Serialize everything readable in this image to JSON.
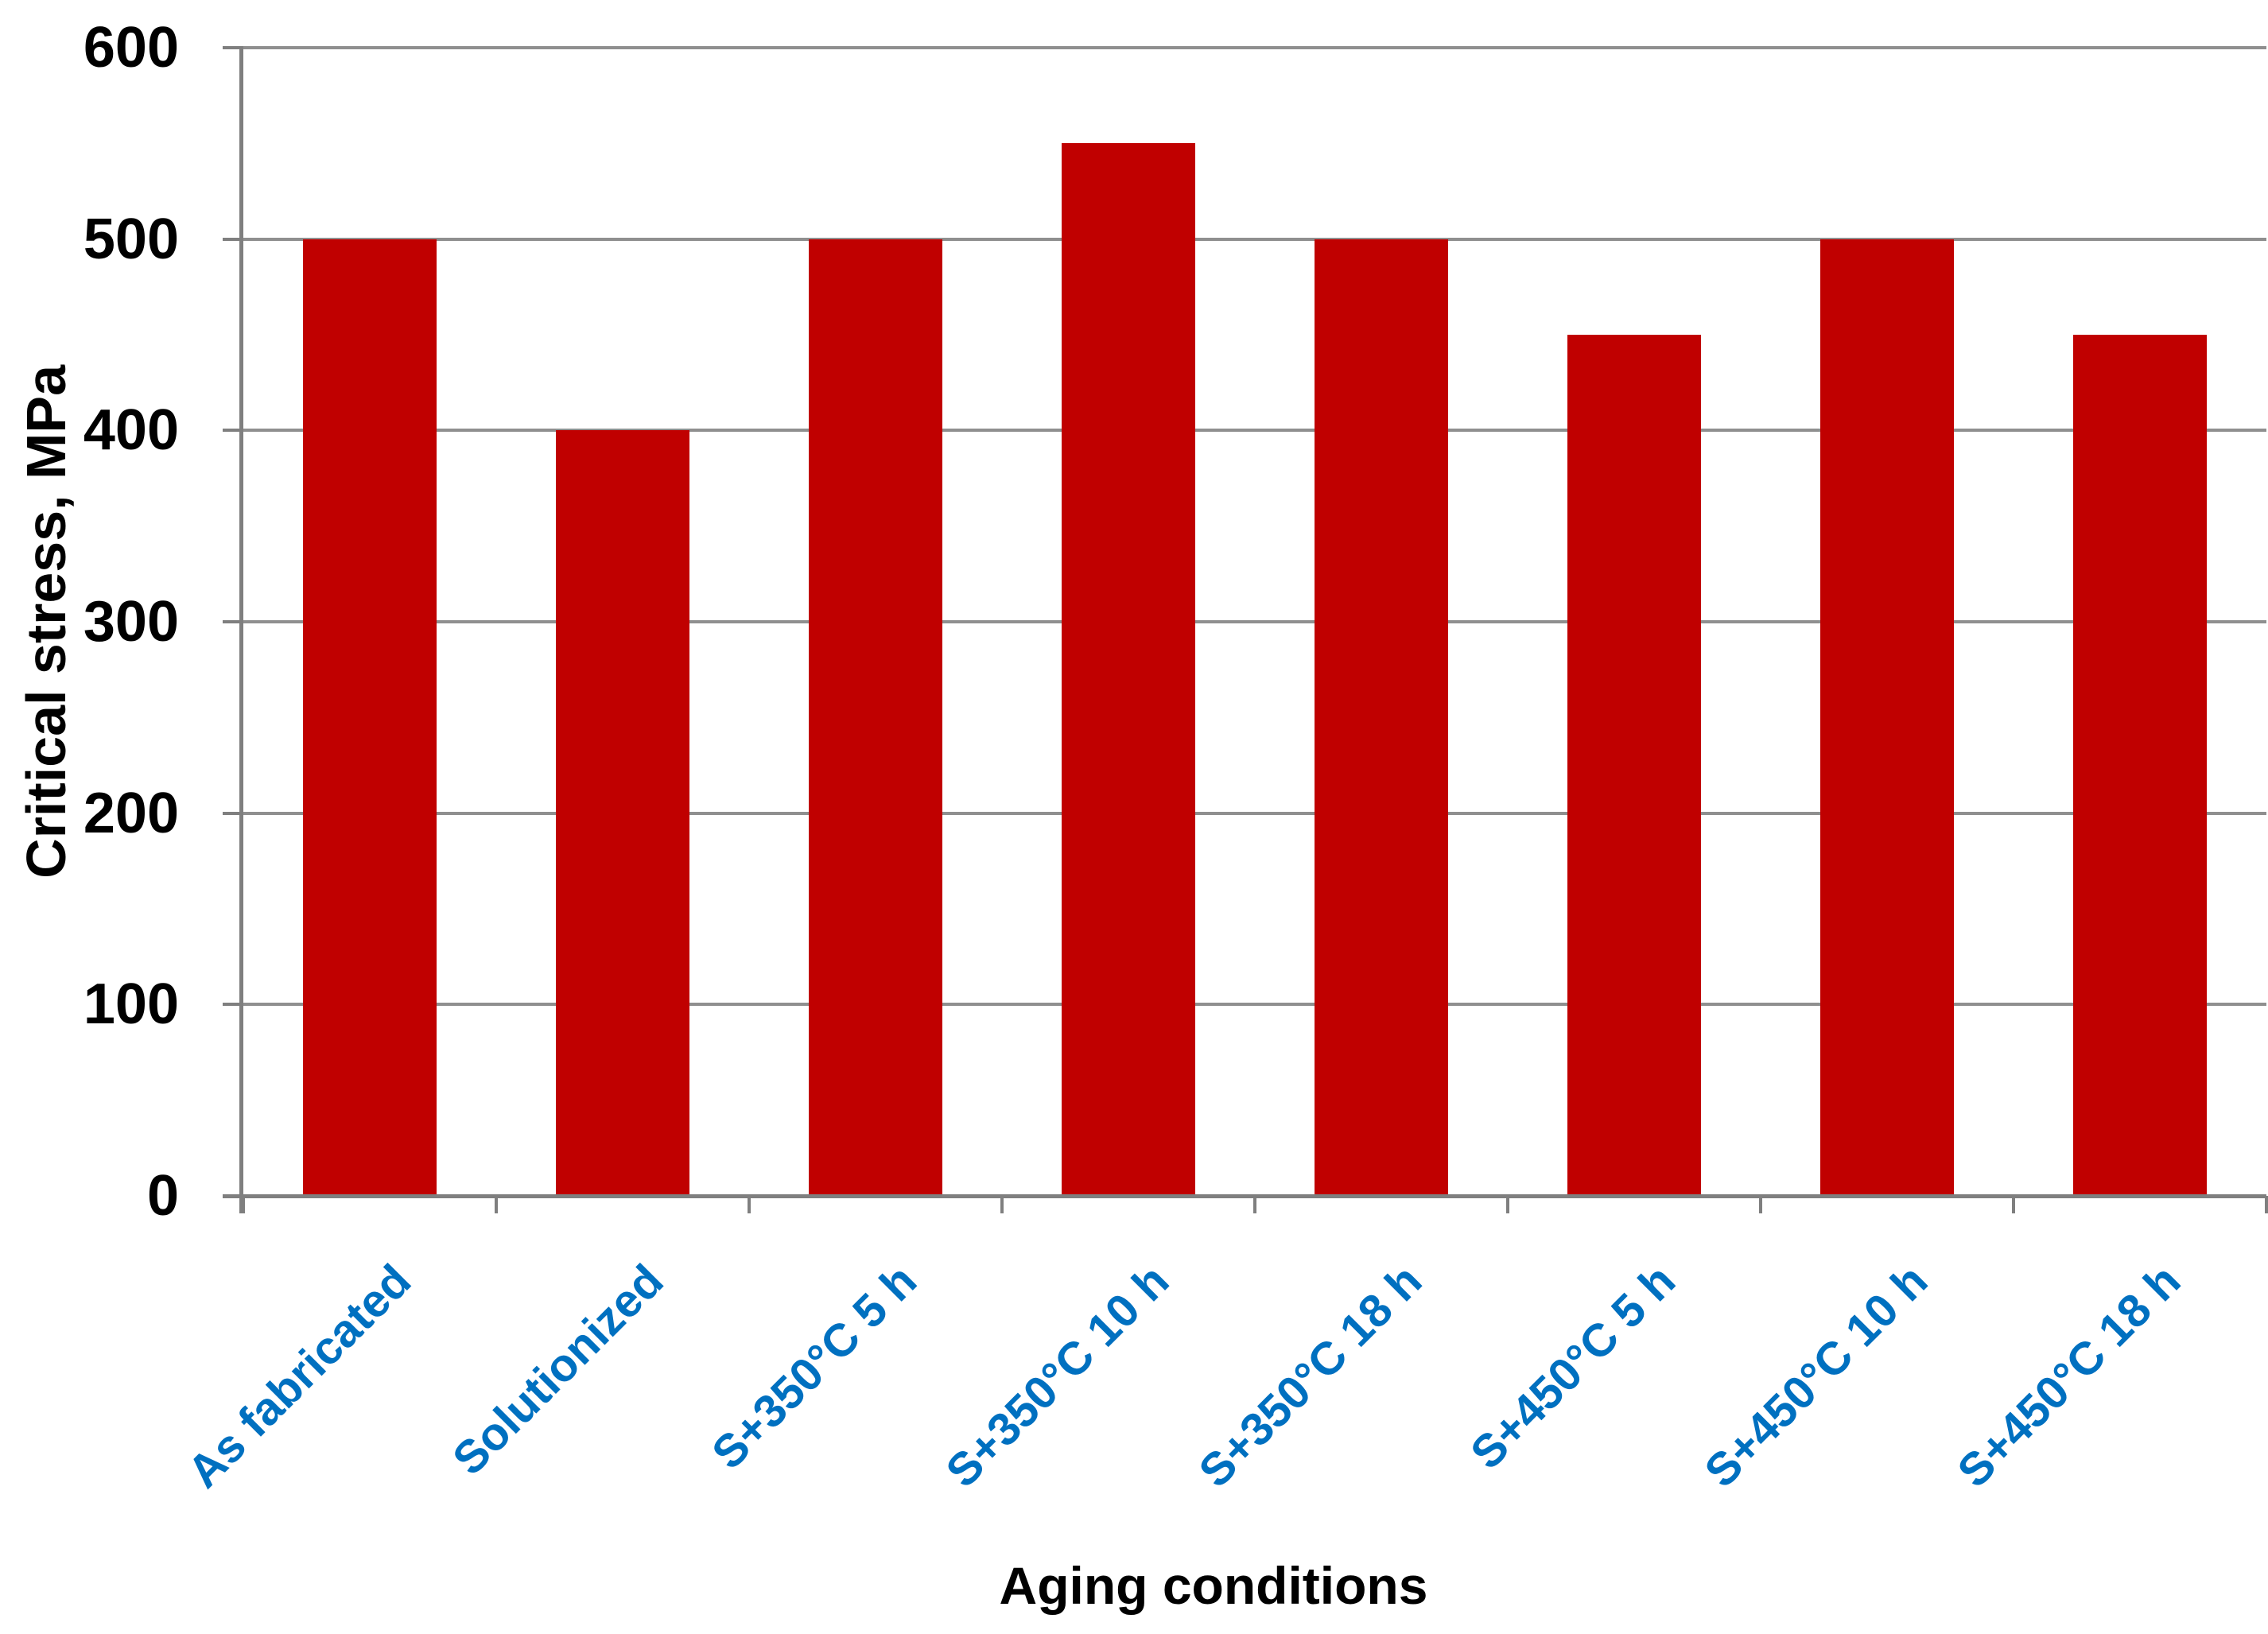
{
  "chart_data": {
    "type": "bar",
    "title": "",
    "xlabel": "Aging conditions",
    "ylabel": "Critical stress, MPa",
    "categories": [
      "As fabricated",
      "Solutionized",
      "S+350°C 5 h",
      "S+350°C 10 h",
      "S+350°C 18 h",
      "S+450°C 5 h",
      "S+450°C 10 h",
      "S+450°C 18 h"
    ],
    "values": [
      500,
      400,
      500,
      550,
      500,
      450,
      500,
      450
    ],
    "ylim": [
      0,
      600
    ],
    "yticks": [
      0,
      100,
      200,
      300,
      400,
      500,
      600
    ],
    "grid": "horizontal",
    "legend": "none",
    "colors": {
      "bar": "#C00000",
      "category_label": "#0070C0",
      "gridline": "#8F8F8F",
      "axis": "#7F7F7F",
      "tick_label": "#000000"
    }
  }
}
